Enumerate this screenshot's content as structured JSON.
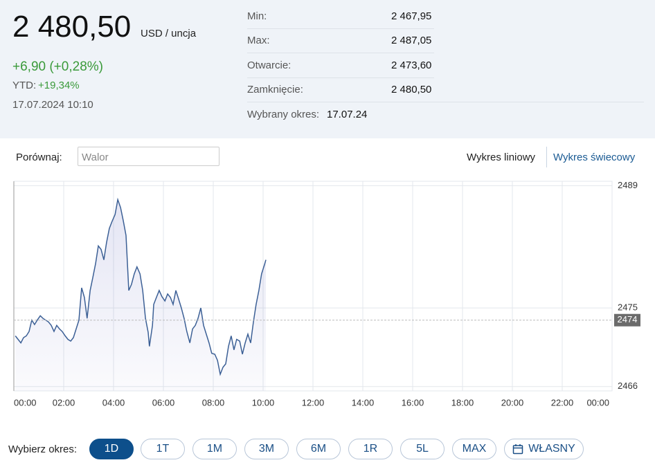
{
  "header": {
    "price": "2 480,50",
    "unit": "USD / uncja",
    "change": "+6,90 (+0,28%)",
    "ytd_label": "YTD:",
    "ytd": "+19,34%",
    "datetime": "17.07.2024 10:10"
  },
  "stats": {
    "rows": [
      {
        "label": "Min:",
        "value": "2 467,95"
      },
      {
        "label": "Max:",
        "value": "2 487,05"
      },
      {
        "label": "Otwarcie:",
        "value": "2 473,60"
      },
      {
        "label": "Zamknięcie:",
        "value": "2 480,50"
      }
    ],
    "selected_label": "Wybrany okres:",
    "selected": "17.07.24"
  },
  "compare": {
    "label": "Porównaj:",
    "placeholder": "Walor"
  },
  "chart_types": {
    "options": [
      "Wykres liniowy",
      "Wykres świecowy"
    ],
    "active": "Wykres liniowy"
  },
  "chart_data": {
    "type": "line",
    "color": "#3b5f95",
    "x": [
      0.06,
      0.17,
      0.28,
      0.39,
      0.5,
      0.61,
      0.72,
      0.83,
      0.94,
      1.06,
      1.17,
      1.28,
      1.39,
      1.5,
      1.61,
      1.72,
      1.83,
      1.94,
      2.06,
      2.17,
      2.28,
      2.39,
      2.5,
      2.61,
      2.72,
      2.83,
      2.94,
      3.06,
      3.17,
      3.28,
      3.39,
      3.5,
      3.61,
      3.72,
      3.83,
      3.94,
      4.06,
      4.17,
      4.28,
      4.39,
      4.5,
      4.61,
      4.72,
      4.83,
      4.94,
      5.06,
      5.17,
      5.28,
      5.39,
      5.44,
      5.56,
      5.61,
      5.72,
      5.83,
      5.94,
      6.06,
      6.17,
      6.28,
      6.39,
      6.5,
      6.61,
      6.72,
      6.83,
      6.94,
      7.06,
      7.17,
      7.28,
      7.39,
      7.5,
      7.61,
      7.72,
      7.83,
      7.94,
      8.06,
      8.17,
      8.28,
      8.39,
      8.5,
      8.61,
      8.72,
      8.83,
      8.94,
      9.06,
      9.17,
      9.28,
      9.39,
      9.5,
      9.61,
      9.72,
      9.83,
      9.94,
      10.06,
      10.11
    ],
    "values": [
      2471.8,
      2471.4,
      2471.0,
      2471.6,
      2471.8,
      2472.3,
      2473.6,
      2473.1,
      2473.6,
      2474.1,
      2473.8,
      2473.6,
      2473.4,
      2473.0,
      2472.3,
      2473.0,
      2472.6,
      2472.3,
      2471.8,
      2471.4,
      2471.2,
      2471.6,
      2472.6,
      2473.6,
      2477.3,
      2476.2,
      2473.8,
      2477.0,
      2478.5,
      2480.1,
      2482.1,
      2481.7,
      2480.5,
      2482.5,
      2484.1,
      2484.9,
      2485.7,
      2487.4,
      2486.5,
      2485.0,
      2483.3,
      2477.0,
      2477.7,
      2478.9,
      2479.7,
      2478.9,
      2477.0,
      2473.8,
      2472.2,
      2470.6,
      2473.0,
      2475.4,
      2476.2,
      2477.0,
      2476.3,
      2475.8,
      2476.6,
      2476.2,
      2475.4,
      2477.0,
      2476.0,
      2475.0,
      2473.8,
      2472.3,
      2471.0,
      2472.6,
      2473.0,
      2473.8,
      2475.0,
      2473.0,
      2472.0,
      2471.0,
      2469.8,
      2469.7,
      2469.0,
      2467.4,
      2468.2,
      2468.6,
      2470.6,
      2471.8,
      2470.2,
      2471.4,
      2471.2,
      2469.7,
      2471.0,
      2472.0,
      2471.0,
      2473.4,
      2475.4,
      2477.0,
      2478.9,
      2480.0,
      2480.5
    ],
    "xlim": [
      0,
      24
    ],
    "xticks": [
      {
        "value": 0,
        "label": "00:00"
      },
      {
        "value": 2,
        "label": "02:00"
      },
      {
        "value": 4,
        "label": "04:00"
      },
      {
        "value": 6,
        "label": "06:00"
      },
      {
        "value": 8,
        "label": "08:00"
      },
      {
        "value": 10,
        "label": "10:00"
      },
      {
        "value": 12,
        "label": "12:00"
      },
      {
        "value": 14,
        "label": "14:00"
      },
      {
        "value": 16,
        "label": "16:00"
      },
      {
        "value": 18,
        "label": "18:00"
      },
      {
        "value": 20,
        "label": "20:00"
      },
      {
        "value": 22,
        "label": "22:00"
      },
      {
        "value": 24,
        "label": "00:00"
      }
    ],
    "ylim": [
      2465.5,
      2489.5
    ],
    "yticks": [
      2466,
      2475,
      2489
    ],
    "reference": {
      "value": 2473.6,
      "label": "2474"
    },
    "grid": true
  },
  "periods": {
    "label": "Wybierz okres:",
    "options": [
      "1D",
      "1T",
      "1M",
      "3M",
      "6M",
      "1R",
      "5L",
      "MAX",
      "WŁASNY"
    ],
    "active": "1D"
  }
}
